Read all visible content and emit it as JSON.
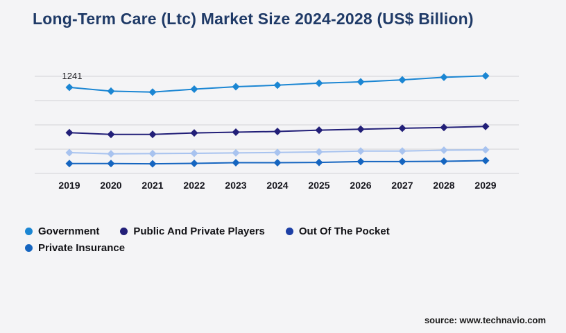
{
  "page": {
    "background_color": "#f4f4f6"
  },
  "header": {
    "title": "Long-Term Care (Ltc) Market Size 2024-2028 (US$ Billion)",
    "title_color": "#1f3a67"
  },
  "chart_data": {
    "type": "line",
    "title": "Long-Term Care (Ltc) Market Size 2024-2028 (US$ Billion)",
    "xlabel": "",
    "ylabel": "",
    "x": [
      2019,
      2020,
      2021,
      2022,
      2023,
      2024,
      2025,
      2026,
      2027,
      2028,
      2029
    ],
    "series": [
      {
        "name": "Government",
        "legend_color": "#1b86d3",
        "line_color": "#1b86d3",
        "values": [
          1241,
          1186,
          1172,
          1215,
          1250,
          1272,
          1301,
          1320,
          1349,
          1386,
          1406
        ]
      },
      {
        "name": "Public And Private Players",
        "legend_color": "#221f78",
        "line_color": "#221f78",
        "values": [
          588,
          562,
          562,
          584,
          595,
          605,
          624,
          637,
          651,
          662,
          678
        ]
      },
      {
        "name": "Out Of The Pocket",
        "legend_color": "#1d3fa5",
        "line_color": "#a8c3ef",
        "values": [
          300,
          283,
          286,
          290,
          296,
          302,
          310,
          322,
          322,
          335,
          340
        ]
      },
      {
        "name": "Private Insurance",
        "legend_color": "#1565c0",
        "line_color": "#1565c0",
        "values": [
          142,
          142,
          139,
          145,
          155,
          155,
          159,
          171,
          171,
          175,
          185
        ]
      }
    ],
    "annotations": [
      {
        "text": "1241",
        "series_index": 0,
        "point_index": 0
      }
    ],
    "ylim": [
      0,
      1400
    ],
    "gridline_values": [
      0,
      350,
      700,
      1050,
      1400
    ],
    "grid": true,
    "y_axis_labels_visible": false,
    "legend_position": "bottom",
    "marker": "diamond",
    "tick_label_color": "#16161d",
    "gridline_color": "#d2d2d6"
  },
  "footer": {
    "source_label": "source: www.technavio.com"
  }
}
